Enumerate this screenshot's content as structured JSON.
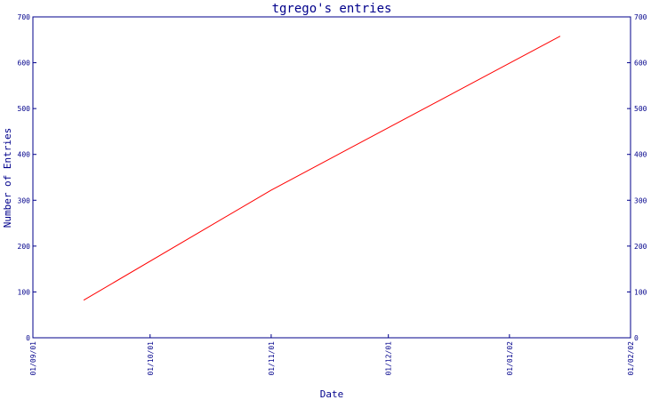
{
  "chart_data": {
    "type": "line",
    "title": "tgrego's entries",
    "xlabel": "Date",
    "ylabel": "Number of Entries",
    "ylim": [
      0,
      700
    ],
    "yticks": [
      0,
      100,
      200,
      300,
      400,
      500,
      600,
      700
    ],
    "xlim": [
      "2001-09-01",
      "2002-02-01"
    ],
    "xticks": [
      {
        "date": "2001-09-01",
        "label": "01/09/01"
      },
      {
        "date": "2001-10-01",
        "label": "01/10/01"
      },
      {
        "date": "2001-11-01",
        "label": "01/11/01"
      },
      {
        "date": "2001-12-01",
        "label": "01/12/01"
      },
      {
        "date": "2002-01-01",
        "label": "01/01/02"
      },
      {
        "date": "2002-02-01",
        "label": "01/02/02"
      }
    ],
    "secondary_y_axis": true,
    "grid": false,
    "colors": {
      "axis": "#00008b",
      "line": "#ff0000"
    },
    "series": [
      {
        "x": [
          "2001-09-14",
          "2001-11-01",
          "2002-01-14"
        ],
        "y": [
          82,
          322,
          658
        ]
      }
    ]
  }
}
